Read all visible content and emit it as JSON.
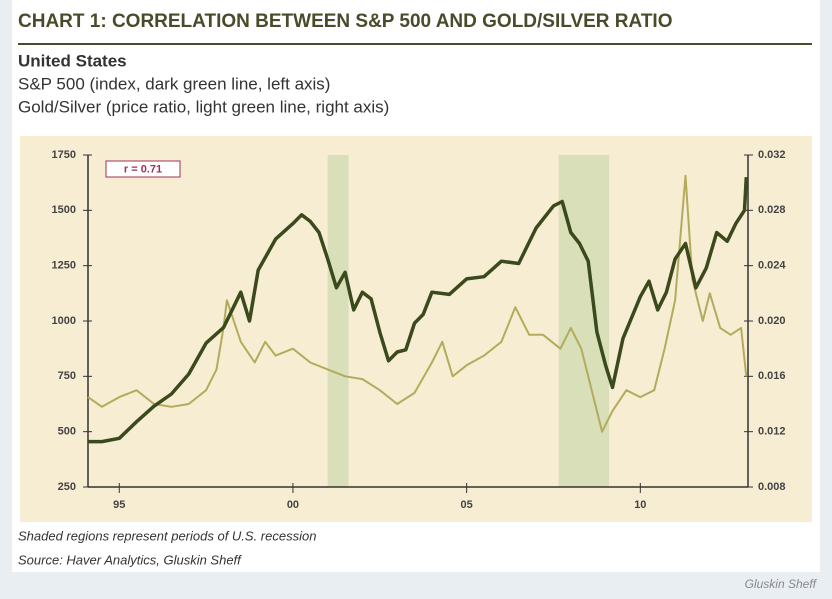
{
  "chart_data": {
    "type": "line",
    "title": "CHART 1: CORRELATION BETWEEN S&P 500 AND GOLD/SILVER RATIO",
    "region": "United States",
    "subtitles": [
      "S&P 500 (index, dark green line, left axis)",
      "Gold/Silver (price ratio, light green line, right axis)"
    ],
    "annotation": "r = 0.71",
    "notes": [
      "Shaded regions represent periods of U.S. recession",
      "Source: Haver Analytics, Gluskin Sheff"
    ],
    "credit": "Gluskin Sheff",
    "xlim": [
      1994.1,
      2013.1
    ],
    "xticks": [
      {
        "value": 1995,
        "label": "95"
      },
      {
        "value": 2000,
        "label": "00"
      },
      {
        "value": 2005,
        "label": "05"
      },
      {
        "value": 2010,
        "label": "10"
      }
    ],
    "ylim": [
      250,
      1750
    ],
    "yticks": [
      250,
      500,
      750,
      1000,
      1250,
      1500,
      1750
    ],
    "y2lim": [
      0.008,
      0.032
    ],
    "y2ticks": [
      0.008,
      0.012,
      0.016,
      {
        "value": 0.02,
        "label": "0.020"
      },
      0.024,
      0.028,
      0.032
    ],
    "recessions": [
      [
        2001.0,
        2001.6
      ],
      [
        2007.65,
        2009.1
      ]
    ],
    "recession_color": "#d9dfb9",
    "series": [
      {
        "name": "S&P 500",
        "color": "#3b4a1c",
        "axis": "y",
        "x": [
          1994.1,
          1994.5,
          1995.0,
          1995.5,
          1996.0,
          1996.5,
          1997.0,
          1997.5,
          1998.0,
          1998.5,
          1998.75,
          1999.0,
          1999.5,
          2000.0,
          2000.25,
          2000.5,
          2000.75,
          2001.0,
          2001.25,
          2001.5,
          2001.75,
          2002.0,
          2002.25,
          2002.5,
          2002.75,
          2003.0,
          2003.25,
          2003.5,
          2003.75,
          2004.0,
          2004.5,
          2005.0,
          2005.5,
          2006.0,
          2006.5,
          2007.0,
          2007.5,
          2007.75,
          2008.0,
          2008.25,
          2008.5,
          2008.75,
          2009.0,
          2009.2,
          2009.5,
          2010.0,
          2010.25,
          2010.5,
          2010.75,
          2011.0,
          2011.3,
          2011.6,
          2011.9,
          2012.2,
          2012.5,
          2012.75,
          2013.0,
          2013.05
        ],
        "values": [
          455,
          455,
          470,
          545,
          615,
          670,
          760,
          900,
          970,
          1130,
          1000,
          1230,
          1370,
          1440,
          1480,
          1450,
          1400,
          1280,
          1150,
          1220,
          1050,
          1130,
          1100,
          950,
          820,
          860,
          870,
          990,
          1030,
          1130,
          1120,
          1190,
          1200,
          1270,
          1260,
          1420,
          1520,
          1540,
          1400,
          1350,
          1270,
          950,
          800,
          700,
          920,
          1110,
          1180,
          1050,
          1130,
          1280,
          1350,
          1150,
          1240,
          1400,
          1360,
          1440,
          1500,
          1650
        ]
      },
      {
        "name": "Gold/Silver",
        "color": "#b3ab5c",
        "axis": "y2",
        "x": [
          1994.1,
          1994.5,
          1995.0,
          1995.5,
          1996.0,
          1996.5,
          1997.0,
          1997.5,
          1997.8,
          1998.0,
          1998.1,
          1998.5,
          1998.9,
          1999.2,
          1999.5,
          2000.0,
          2000.5,
          2001.0,
          2001.5,
          2002.0,
          2002.5,
          2003.0,
          2003.5,
          2004.0,
          2004.3,
          2004.6,
          2005.0,
          2005.5,
          2006.0,
          2006.4,
          2006.8,
          2007.2,
          2007.7,
          2008.0,
          2008.3,
          2008.6,
          2008.9,
          2009.2,
          2009.6,
          2010.0,
          2010.4,
          2010.7,
          2011.0,
          2011.3,
          2011.5,
          2011.8,
          2012.0,
          2012.3,
          2012.6,
          2012.9,
          2013.05
        ],
        "values": [
          0.0145,
          0.0138,
          0.0145,
          0.015,
          0.014,
          0.0138,
          0.014,
          0.015,
          0.0165,
          0.0195,
          0.0215,
          0.0185,
          0.017,
          0.0185,
          0.0175,
          0.018,
          0.017,
          0.0165,
          0.016,
          0.0158,
          0.015,
          0.014,
          0.0148,
          0.017,
          0.0185,
          0.016,
          0.0168,
          0.0175,
          0.0185,
          0.021,
          0.019,
          0.019,
          0.018,
          0.0195,
          0.018,
          0.015,
          0.012,
          0.0135,
          0.015,
          0.0145,
          0.015,
          0.018,
          0.0215,
          0.0305,
          0.023,
          0.02,
          0.022,
          0.0195,
          0.019,
          0.0195,
          0.016
        ]
      }
    ]
  }
}
